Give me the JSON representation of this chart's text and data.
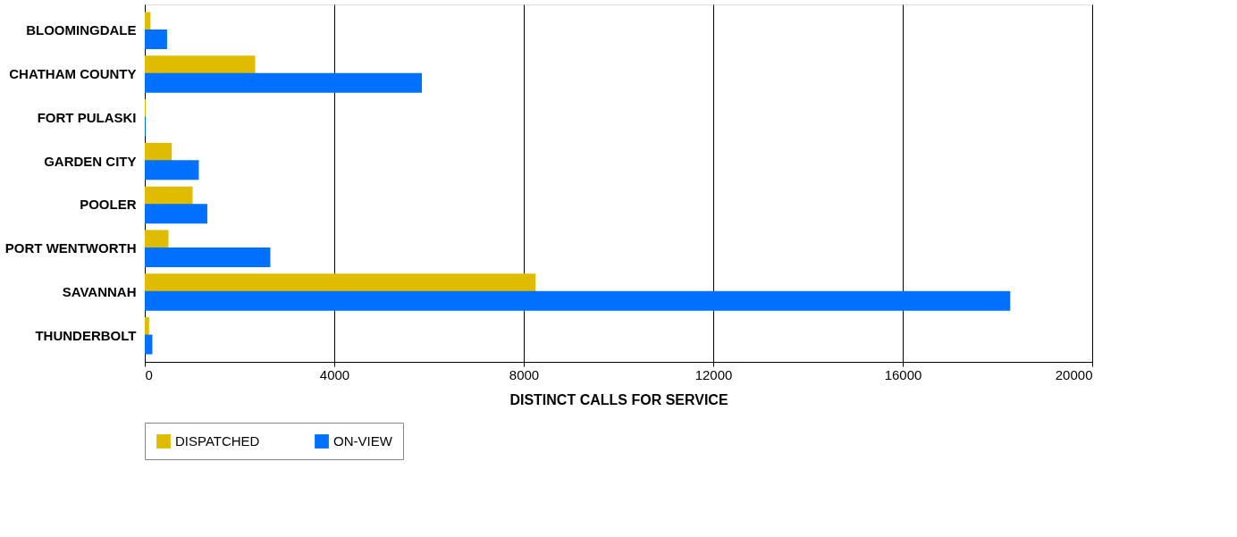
{
  "chart_data": {
    "type": "bar",
    "orientation": "horizontal",
    "xlabel": "DISTINCT CALLS FOR SERVICE",
    "categories": [
      "BLOOMINGDALE",
      "CHATHAM COUNTY",
      "FORT PULASKI",
      "GARDEN CITY",
      "POOLER",
      "PORT WENTWORTH",
      "SAVANNAH",
      "THUNDERBOLT"
    ],
    "series": [
      {
        "name": "DISPATCHED",
        "color": "#e0bc00",
        "values": [
          120,
          2330,
          20,
          570,
          1010,
          500,
          8250,
          90
        ]
      },
      {
        "name": "ON-VIEW",
        "color": "#0070ff",
        "values": [
          470,
          5850,
          20,
          1140,
          1320,
          2650,
          18270,
          160
        ]
      }
    ],
    "xlim": [
      0,
      20000
    ],
    "xticks": [
      0,
      4000,
      8000,
      12000,
      16000,
      20000
    ],
    "grid": "x",
    "legend": "bottom"
  }
}
